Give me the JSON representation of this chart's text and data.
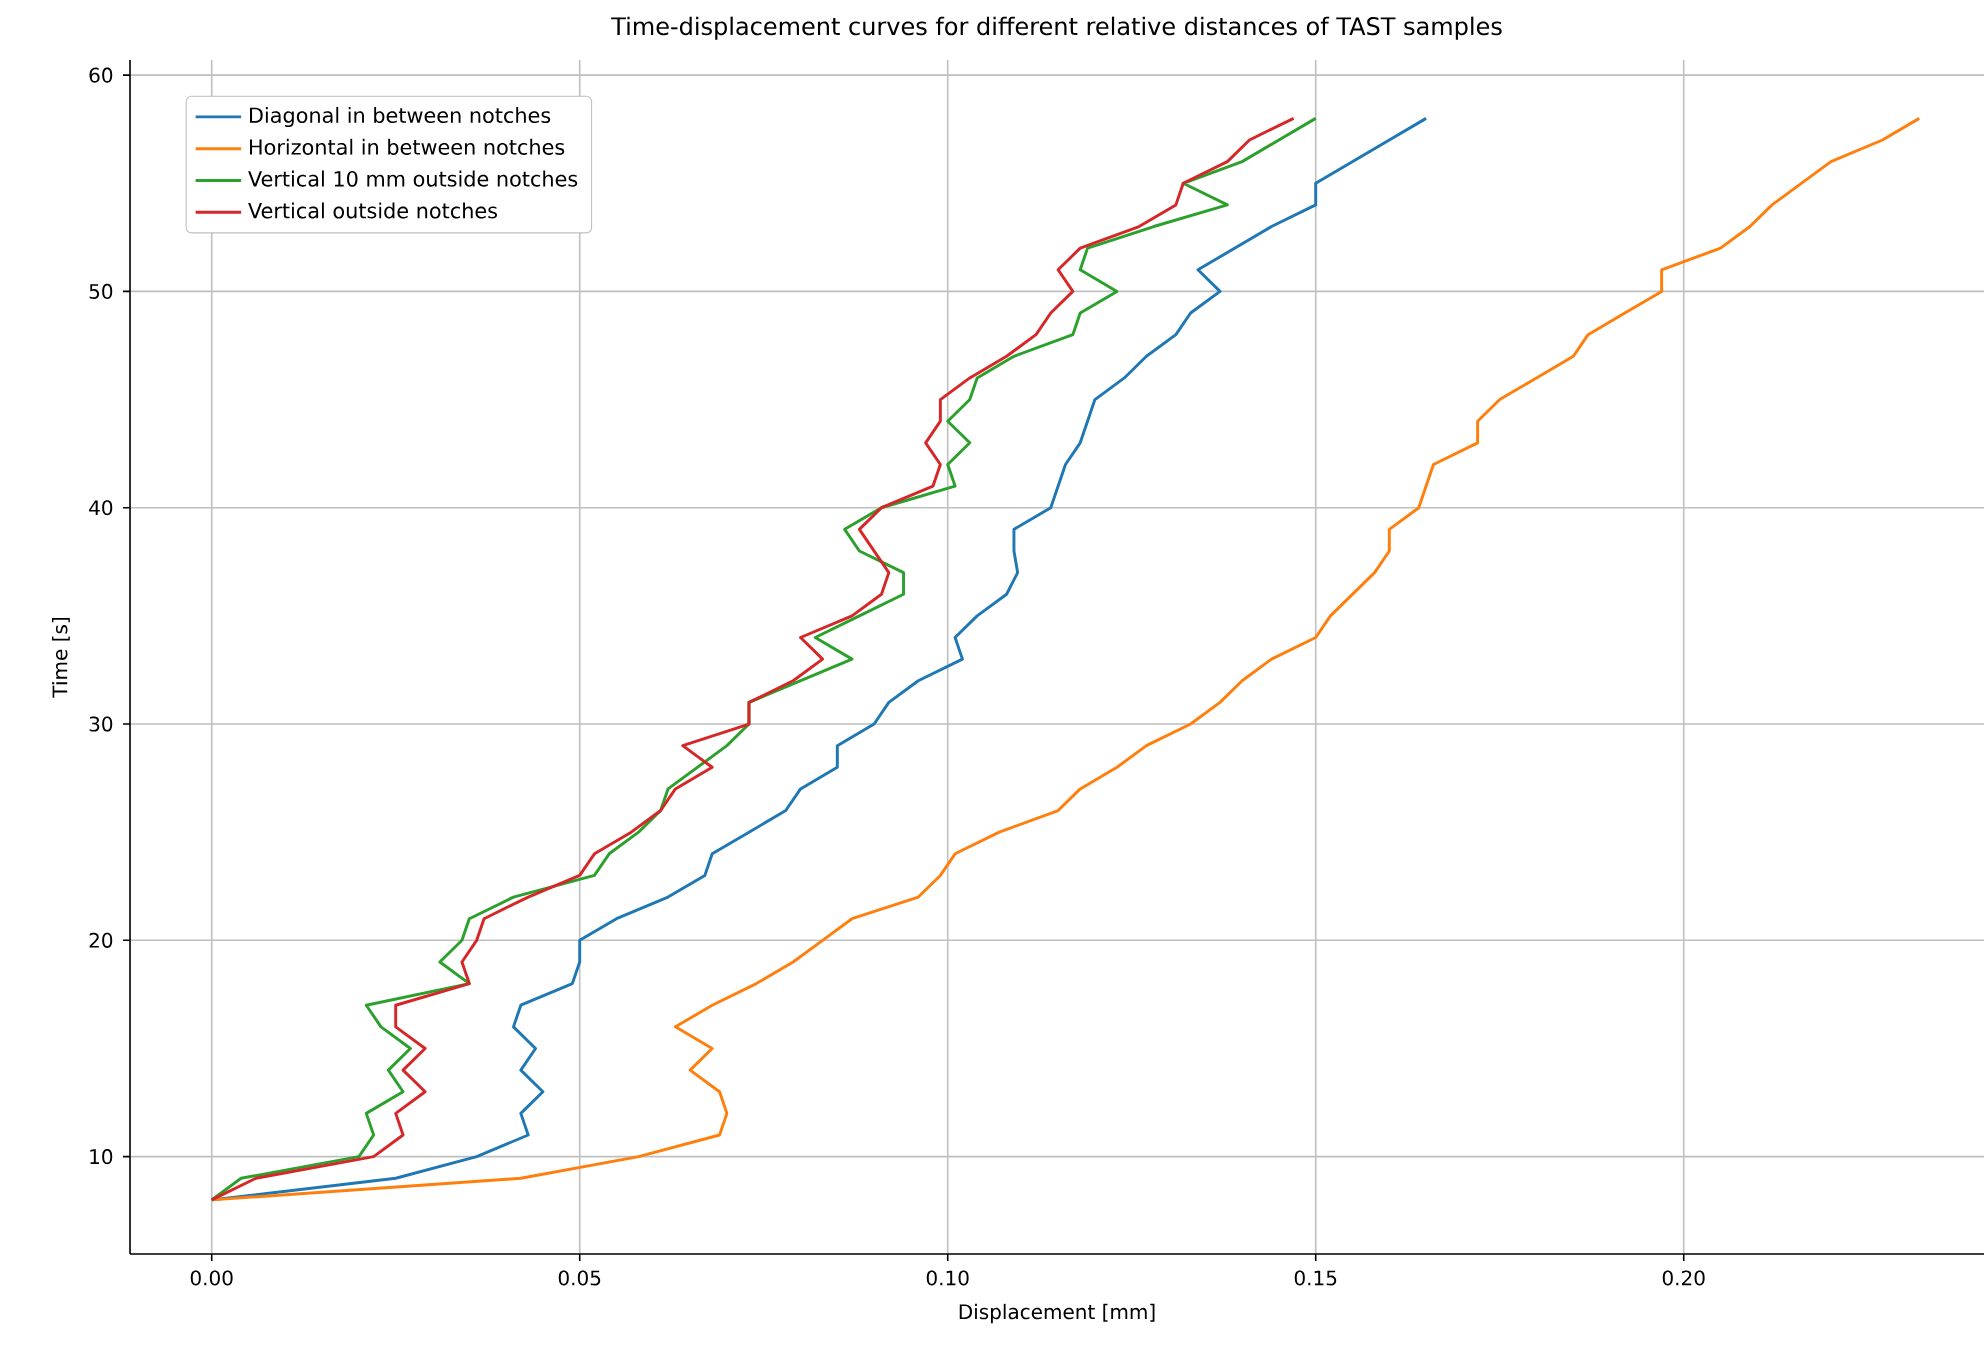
{
  "chart_data": {
    "type": "line",
    "title": "Time-displacement curves for different relative distances of TAST samples",
    "xlabel": "Displacement [mm]",
    "ylabel": "Time [s]",
    "xlim": [
      -0.0111,
      0.2408
    ],
    "ylim": [
      5.5,
      60.7
    ],
    "xticks": [
      {
        "value": 0,
        "label": "0.00"
      },
      {
        "value": 0.05,
        "label": "0.05"
      },
      {
        "value": 0.1,
        "label": "0.10"
      },
      {
        "value": 0.15,
        "label": "0.15"
      },
      {
        "value": 0.2,
        "label": "0.20"
      }
    ],
    "yticks": [
      10,
      20,
      30,
      40,
      50,
      60
    ],
    "grid": true,
    "legend": "top left",
    "line_style": "solid",
    "series": [
      {
        "name": "Diagonal in between notches",
        "color": "#1f77b4",
        "x": [
          0,
          0.025,
          0.036,
          0.043,
          0.042,
          0.045,
          0.042,
          0.044,
          0.041,
          0.042,
          0.049,
          0.05,
          0.05,
          0.055,
          0.062,
          0.067,
          0.068,
          0.073,
          0.078,
          0.08,
          0.085,
          0.085,
          0.09,
          0.092,
          0.096,
          0.102,
          0.101,
          0.104,
          0.108,
          0.1095,
          0.109,
          0.109,
          0.114,
          0.115,
          0.116,
          0.118,
          0.119,
          0.12,
          0.124,
          0.127,
          0.131,
          0.133,
          0.137,
          0.134,
          0.139,
          0.144,
          0.15,
          0.15,
          0.155,
          0.16,
          0.165
        ],
        "values": [
          8,
          9,
          10,
          11,
          12,
          13,
          14,
          15,
          16,
          17,
          18,
          19,
          20,
          21,
          22,
          23,
          24,
          25,
          26,
          27,
          28,
          29,
          30,
          31,
          32,
          33,
          34,
          35,
          36,
          37,
          38,
          39,
          40,
          41,
          42,
          43,
          44,
          45,
          46,
          47,
          48,
          49,
          50,
          51,
          52,
          53,
          54,
          55,
          56,
          57,
          58
        ]
      },
      {
        "name": "Horizontal in between notches",
        "color": "#ff7f0e",
        "x": [
          0,
          0.042,
          0.058,
          0.069,
          0.07,
          0.069,
          0.065,
          0.068,
          0.063,
          0.068,
          0.074,
          0.079,
          0.083,
          0.087,
          0.096,
          0.099,
          0.101,
          0.107,
          0.115,
          0.118,
          0.123,
          0.127,
          0.133,
          0.137,
          0.14,
          0.144,
          0.15,
          0.152,
          0.155,
          0.158,
          0.16,
          0.16,
          0.164,
          0.165,
          0.166,
          0.172,
          0.172,
          0.175,
          0.18,
          0.185,
          0.187,
          0.192,
          0.197,
          0.197,
          0.205,
          0.209,
          0.212,
          0.216,
          0.22,
          0.227,
          0.232
        ],
        "values": [
          8,
          9,
          10,
          11,
          12,
          13,
          14,
          15,
          16,
          17,
          18,
          19,
          20,
          21,
          22,
          23,
          24,
          25,
          26,
          27,
          28,
          29,
          30,
          31,
          32,
          33,
          34,
          35,
          36,
          37,
          38,
          39,
          40,
          41,
          42,
          43,
          44,
          45,
          46,
          47,
          48,
          49,
          50,
          51,
          52,
          53,
          54,
          55,
          56,
          57,
          58
        ]
      },
      {
        "name": "Vertical 10 mm outside notches",
        "color": "#2ca02c",
        "x": [
          0,
          0.004,
          0.02,
          0.022,
          0.021,
          0.026,
          0.024,
          0.027,
          0.023,
          0.021,
          0.035,
          0.031,
          0.034,
          0.035,
          0.041,
          0.052,
          0.054,
          0.058,
          0.061,
          0.062,
          0.066,
          0.07,
          0.073,
          0.073,
          0.08,
          0.087,
          0.082,
          0.088,
          0.094,
          0.094,
          0.088,
          0.086,
          0.091,
          0.101,
          0.1,
          0.103,
          0.1,
          0.103,
          0.104,
          0.109,
          0.117,
          0.118,
          0.123,
          0.118,
          0.119,
          0.128,
          0.138,
          0.132,
          0.14,
          0.145,
          0.15
        ],
        "values": [
          8,
          9,
          10,
          11,
          12,
          13,
          14,
          15,
          16,
          17,
          18,
          19,
          20,
          21,
          22,
          23,
          24,
          25,
          26,
          27,
          28,
          29,
          30,
          31,
          32,
          33,
          34,
          35,
          36,
          37,
          38,
          39,
          40,
          41,
          42,
          43,
          44,
          45,
          46,
          47,
          48,
          49,
          50,
          51,
          52,
          53,
          54,
          55,
          56,
          57,
          58
        ]
      },
      {
        "name": "Vertical outside notches",
        "color": "#d62728",
        "x": [
          0,
          0.006,
          0.022,
          0.026,
          0.025,
          0.029,
          0.026,
          0.029,
          0.025,
          0.025,
          0.035,
          0.034,
          0.036,
          0.037,
          0.043,
          0.05,
          0.052,
          0.057,
          0.061,
          0.063,
          0.068,
          0.064,
          0.073,
          0.073,
          0.079,
          0.083,
          0.08,
          0.087,
          0.091,
          0.092,
          0.09,
          0.088,
          0.091,
          0.098,
          0.099,
          0.097,
          0.099,
          0.099,
          0.103,
          0.108,
          0.112,
          0.114,
          0.117,
          0.115,
          0.118,
          0.126,
          0.131,
          0.132,
          0.138,
          0.141,
          0.147
        ],
        "values": [
          8,
          9,
          10,
          11,
          12,
          13,
          14,
          15,
          16,
          17,
          18,
          19,
          20,
          21,
          22,
          23,
          24,
          25,
          26,
          27,
          28,
          29,
          30,
          31,
          32,
          33,
          34,
          35,
          36,
          37,
          38,
          39,
          40,
          41,
          42,
          43,
          44,
          45,
          46,
          47,
          48,
          49,
          50,
          51,
          52,
          53,
          54,
          55,
          56,
          57,
          58
        ]
      }
    ]
  }
}
